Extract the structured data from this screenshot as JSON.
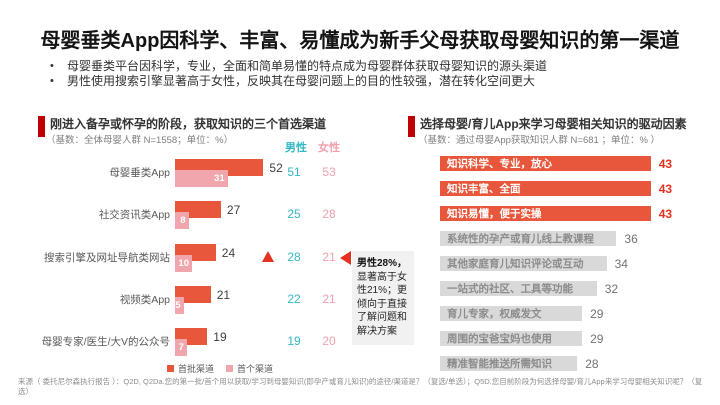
{
  "slide": {
    "title": "母婴垂类App因科学、丰富、易懂成为新手父母获取母婴知识的第一渠道",
    "bullets": [
      "母婴垂类平台因科学，专业，全面和简单易懂的特点成为母婴群体获取母婴知识的源头渠道",
      "男性使用搜索引擎显著高于女性，反映其在母婴问题上的目的性较强，潜在转化空间更大"
    ],
    "bullet_glyph": "•",
    "source": "来源（ 委托尼尔森执行报告 ）：Q2D, Q2Da.您的第一批/首个用以获取/学习到母婴知识(即孕产或育儿知识)的途径/渠道是？（复选/单选）；Q5D.您目前阶段为何选择母婴/育儿App来学习母婴相关知识呢？（复选）"
  },
  "annotation": {
    "lead": "男性28%，",
    "rest": "显著高于女性21%；更倾向于直接了解问题和解决方案"
  },
  "colors": {
    "accent_red": "#C00000",
    "bar_orange": "#E8573B",
    "bar_pink": "#F1A5AC",
    "male_teal": "#35B7C4",
    "female_pink": "#F1A0AD",
    "highlight_number_red": "#E5311F",
    "gray_bar": "#D9D9D9"
  },
  "chart_data": [
    {
      "type": "bar",
      "orientation": "horizontal",
      "title": "刚进入备孕或怀孕的阶段，获取知识的三个首选渠道",
      "subtitle": "（基数：全体母婴人群 N=1558；单位：%）",
      "unit": "%",
      "xlim": [
        0,
        60
      ],
      "categories": [
        "母婴垂类App",
        "社交资讯类App",
        "搜索引擎及网址导航类网站",
        "视频类App",
        "母婴专家/医生/大V的公众号"
      ],
      "series": [
        {
          "name": "首批渠道",
          "color": "#E8573B",
          "values": [
            52,
            27,
            24,
            21,
            19
          ]
        },
        {
          "name": "首个渠道",
          "color": "#F1A5AC",
          "values": [
            31,
            8,
            10,
            5,
            7
          ]
        }
      ],
      "gender": {
        "male_label": "男性",
        "female_label": "女性",
        "male_color": "#35B7C4",
        "female_color": "#F1A0AD",
        "male_values": [
          51,
          25,
          28,
          22,
          19
        ],
        "female_values": [
          53,
          28,
          21,
          21,
          20
        ],
        "marker_row_index": 2
      },
      "legend_position": "bottom"
    },
    {
      "type": "bar",
      "orientation": "horizontal",
      "title": "选择母婴/育儿App来学习母婴相关知识的驱动因素",
      "subtitle": "（基数：通过母婴App获取知识人群 N=681 ；单位：% ）",
      "unit": "%",
      "xlim": [
        0,
        50
      ],
      "categories": [
        "知识科学、专业，放心",
        "知识丰富、全面",
        "知识易懂，便于实操",
        "系统性的孕产或育儿线上教课程",
        "其他家庭育儿知识评论或互动",
        "一站式的社区、工具等功能",
        "育儿专家，权威发文",
        "周围的宝爸宝妈也使用",
        "精准智能推送所需知识"
      ],
      "values": [
        43,
        43,
        43,
        36,
        34,
        32,
        29,
        29,
        28
      ],
      "highlighted_bars": 3
    }
  ]
}
